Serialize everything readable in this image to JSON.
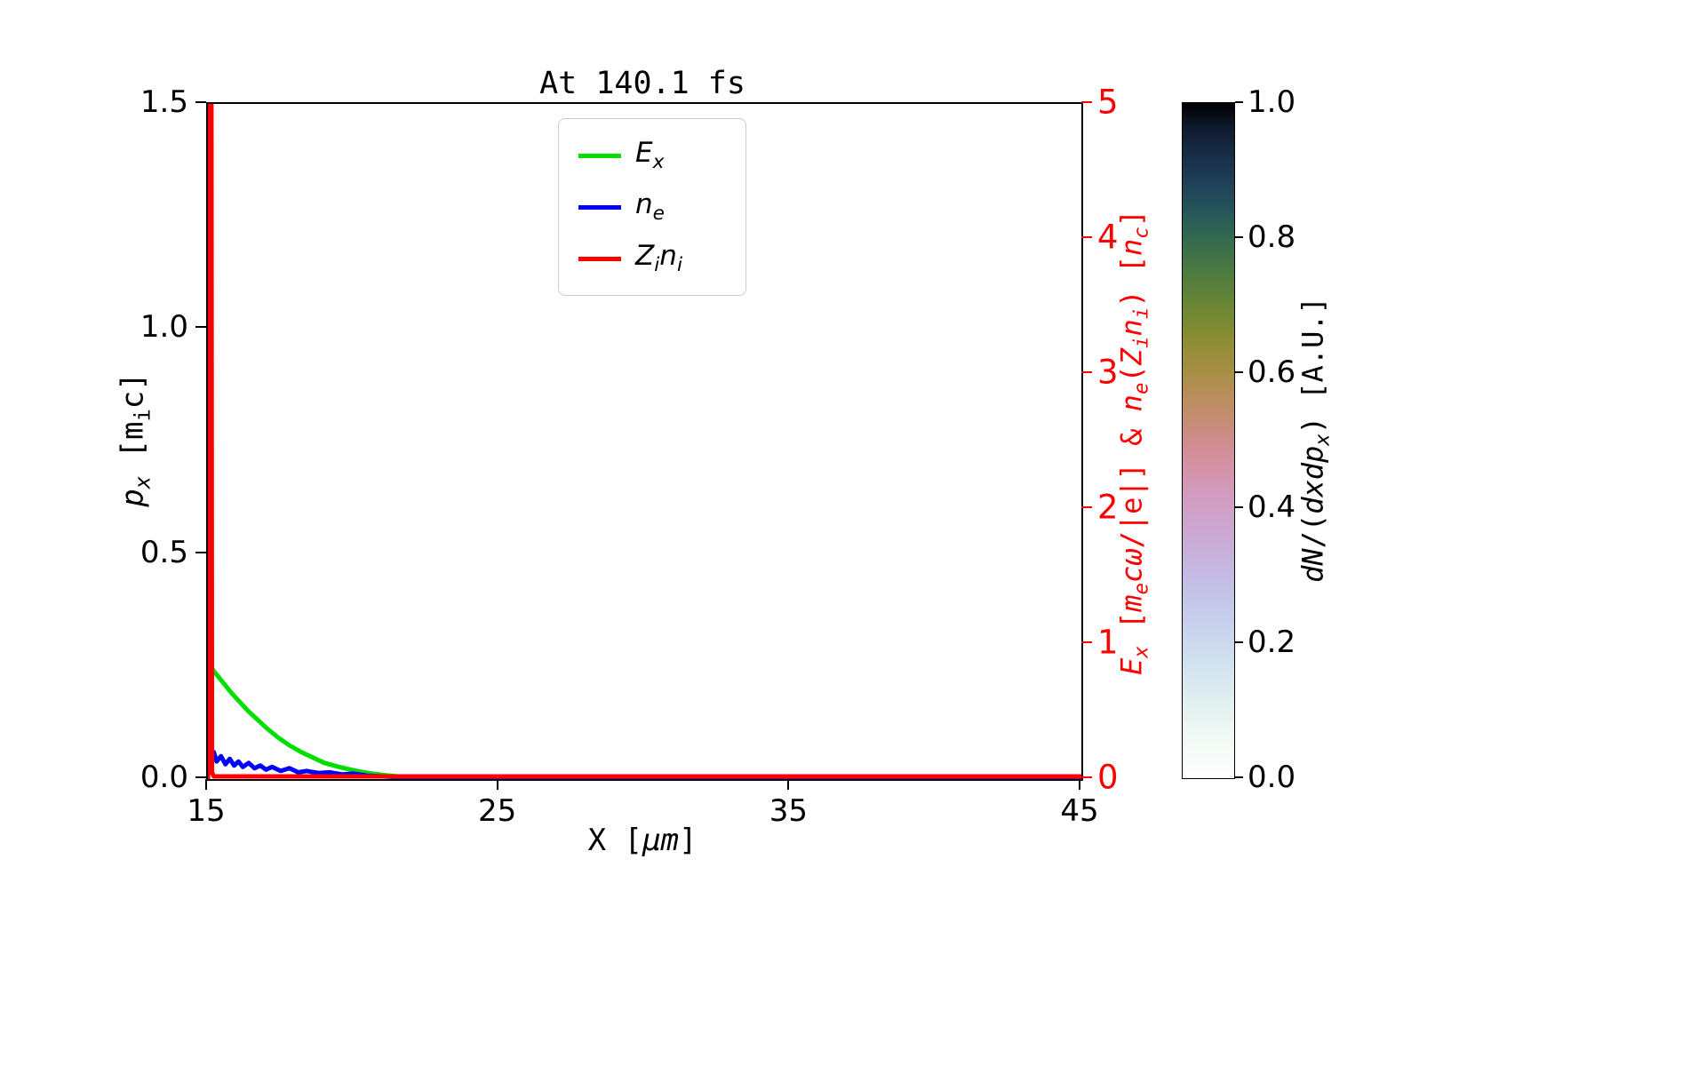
{
  "chart_data": {
    "type": "line",
    "title": "At 140.1 fs",
    "xlabel_html": "X [<i>μm</i>]",
    "ylabel_left_html": "<i>p<sub>x</sub></i> [m<sub>i</sub>c]",
    "ylabel_right_html": "<i>E<sub>x</sub></i> [<i>m<sub>e</sub>cω</i>/|e|] &amp; <i>n<sub>e</sub></i>(<i>Z<sub>i</sub>n<sub>i</sub></i>) [<i>n<sub>c</sub></i>]",
    "xlim": [
      15,
      45
    ],
    "ylim_left": [
      0,
      1.5
    ],
    "ylim_right": [
      0,
      5
    ],
    "grid": false,
    "legend_position": "upper center",
    "axis_right_color": "#ff0000",
    "x_ticks": [
      {
        "v": 15,
        "label": "15"
      },
      {
        "v": 25,
        "label": "25"
      },
      {
        "v": 35,
        "label": "35"
      },
      {
        "v": 45,
        "label": "45"
      }
    ],
    "y_ticks_left": [
      {
        "v": 0.0,
        "label": "0.0"
      },
      {
        "v": 0.5,
        "label": "0.5"
      },
      {
        "v": 1.0,
        "label": "1.0"
      },
      {
        "v": 1.5,
        "label": "1.5"
      }
    ],
    "y_ticks_right": [
      {
        "v": 0,
        "label": "0"
      },
      {
        "v": 1,
        "label": "1"
      },
      {
        "v": 2,
        "label": "2"
      },
      {
        "v": 3,
        "label": "3"
      },
      {
        "v": 4,
        "label": "4"
      },
      {
        "v": 5,
        "label": "5"
      }
    ],
    "legend": [
      {
        "label_html": "<i>E<sub>x</sub></i>",
        "color": "#00dd00"
      },
      {
        "label_html": "<i>n<sub>e</sub></i>",
        "color": "#0000ff"
      },
      {
        "label_html": "<i>Z<sub>i</sub>n<sub>i</sub></i>",
        "color": "#ff0000"
      }
    ],
    "series": [
      {
        "name": "Ex",
        "color": "#00dd00",
        "axis": "right",
        "x": [
          15.0,
          15.2,
          15.5,
          15.8,
          16.1,
          16.4,
          16.7,
          17.0,
          17.4,
          17.8,
          18.2,
          18.6,
          19.0,
          19.5,
          20.0,
          20.5,
          21.0,
          21.5,
          22.0,
          23.0,
          24.0,
          26.0,
          30.0,
          45.0
        ],
        "y": [
          0.86,
          0.8,
          0.72,
          0.64,
          0.57,
          0.5,
          0.44,
          0.38,
          0.31,
          0.25,
          0.2,
          0.16,
          0.12,
          0.09,
          0.065,
          0.045,
          0.03,
          0.02,
          0.012,
          0.005,
          0.002,
          0.0,
          0.0,
          0.0
        ]
      },
      {
        "name": "ne",
        "color": "#0000ff",
        "axis": "right",
        "x": [
          15.0,
          15.05,
          15.1,
          15.2,
          15.3,
          15.45,
          15.6,
          15.75,
          15.9,
          16.05,
          16.2,
          16.4,
          16.6,
          16.8,
          17.0,
          17.2,
          17.5,
          17.8,
          18.1,
          18.4,
          18.8,
          19.2,
          19.6,
          20.0,
          20.5,
          21.0,
          21.5,
          22.0,
          23.0,
          25.0,
          45.0
        ],
        "y": [
          0.02,
          0.26,
          0.16,
          0.2,
          0.13,
          0.17,
          0.11,
          0.15,
          0.1,
          0.13,
          0.09,
          0.12,
          0.08,
          0.1,
          0.07,
          0.09,
          0.06,
          0.08,
          0.05,
          0.06,
          0.045,
          0.05,
          0.035,
          0.04,
          0.025,
          0.02,
          0.015,
          0.01,
          0.005,
          0.0,
          0.0
        ]
      },
      {
        "name": "Zini",
        "color": "#ff0000",
        "axis": "right",
        "x": [
          15.0,
          15.02,
          15.04,
          15.12,
          15.14,
          15.2,
          16.0,
          45.0
        ],
        "y": [
          0.0,
          0.1,
          5.3,
          5.3,
          0.05,
          0.02,
          0.02,
          0.02
        ]
      }
    ],
    "colorbar": {
      "label_html": "<i>dN</i>/(<i>dxdp<sub>x</sub></i>) [A.U.]",
      "range": [
        0,
        1
      ],
      "ticks": [
        {
          "v": 0.0,
          "label": "0.0"
        },
        {
          "v": 0.2,
          "label": "0.2"
        },
        {
          "v": 0.4,
          "label": "0.4"
        },
        {
          "v": 0.6,
          "label": "0.6"
        },
        {
          "v": 0.8,
          "label": "0.8"
        },
        {
          "v": 1.0,
          "label": "1.0"
        }
      ],
      "gradient_stops": [
        [
          "0",
          "#ffffff"
        ],
        [
          "6",
          "#f2faf4"
        ],
        [
          "12",
          "#dfeef0"
        ],
        [
          "18",
          "#cfdff0"
        ],
        [
          "24",
          "#c6cdec"
        ],
        [
          "30",
          "#c5bbe4"
        ],
        [
          "36",
          "#cba9d4"
        ],
        [
          "42",
          "#d29bc0"
        ],
        [
          "46",
          "#d492a6"
        ],
        [
          "50",
          "#cf8c8c"
        ],
        [
          "55",
          "#c08d66"
        ],
        [
          "60",
          "#a98f45"
        ],
        [
          "65",
          "#8b8d33"
        ],
        [
          "70",
          "#6b8634"
        ],
        [
          "75",
          "#4c7a41"
        ],
        [
          "80",
          "#33694f"
        ],
        [
          "84",
          "#265659"
        ],
        [
          "88",
          "#1f4158"
        ],
        [
          "92",
          "#192e49"
        ],
        [
          "96",
          "#101b31"
        ],
        [
          "100",
          "#000000"
        ]
      ]
    }
  }
}
